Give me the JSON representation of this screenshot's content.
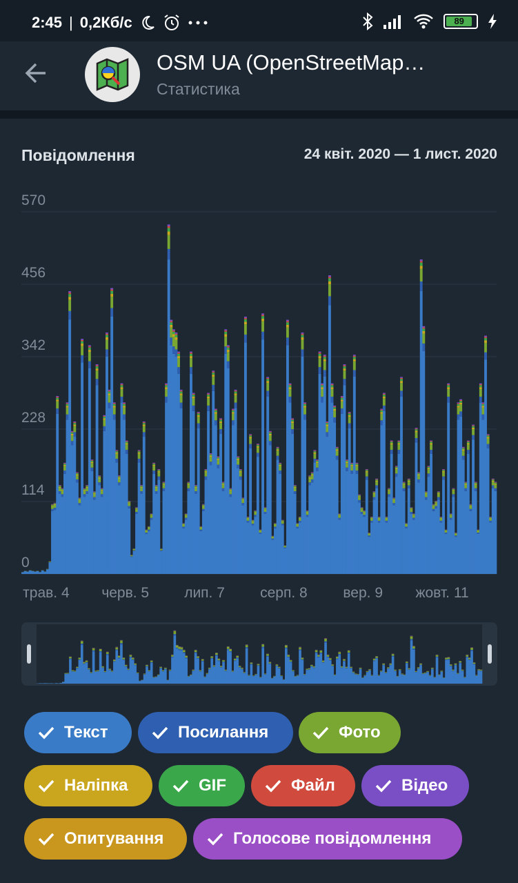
{
  "status_bar": {
    "time": "2:45",
    "separator": "|",
    "speed": "0,2Кб/с",
    "battery": "89",
    "icons": [
      "moon-icon",
      "alarm-icon",
      "more-dots-icon",
      "bluetooth-icon",
      "signal-icon",
      "wifi-icon",
      "battery-icon",
      "charging-bolt-icon"
    ]
  },
  "header": {
    "title": "OSM UA (OpenStreetMap…",
    "subtitle": "Статистика",
    "back_icon": "back-arrow-icon",
    "avatar_icon": "map-search-icon"
  },
  "chart_card": {
    "title": "Повідомлення",
    "range": "24 квіт. 2020 — 1 лист. 2020"
  },
  "chart_data": {
    "type": "bar",
    "stacked": true,
    "title": "Повідомлення",
    "ylim": [
      0,
      570
    ],
    "y_ticks": [
      "570",
      "456",
      "342",
      "228",
      "114",
      "0"
    ],
    "y_tick_values": [
      570,
      456,
      342,
      228,
      114,
      0
    ],
    "x_ticks": [
      "трав. 4",
      "черв. 5",
      "лип. 7",
      "серп. 8",
      "вер. 9",
      "жовт. 11"
    ],
    "x_tick_indexes": [
      10,
      42,
      74,
      106,
      138,
      170
    ],
    "grid": true,
    "colors": {
      "text": "#3a7bc8",
      "links": "#2f5fb0",
      "photo": "#7aa632",
      "sticker": "#c9a61e",
      "gif": "#3aa84a",
      "file": "#d04a3d",
      "video": "#7a4fc6"
    },
    "days": 192,
    "totals": [
      3,
      5,
      4,
      6,
      5,
      4,
      5,
      3,
      6,
      4,
      8,
      20,
      110,
      112,
      280,
      140,
      135,
      175,
      270,
      445,
      225,
      240,
      160,
      120,
      370,
      135,
      140,
      360,
      180,
      130,
      330,
      155,
      135,
      250,
      380,
      290,
      450,
      270,
      195,
      155,
      300,
      270,
      210,
      115,
      30,
      40,
      105,
      195,
      140,
      240,
      70,
      75,
      95,
      175,
      140,
      165,
      40,
      145,
      300,
      550,
      400,
      385,
      380,
      350,
      290,
      80,
      95,
      145,
      350,
      285,
      140,
      255,
      75,
      110,
      165,
      285,
      190,
      320,
      260,
      185,
      245,
      145,
      385,
      360,
      135,
      260,
      290,
      185,
      165,
      120,
      405,
      90,
      220,
      85,
      100,
      205,
      70,
      410,
      105,
      310,
      225,
      60,
      80,
      200,
      175,
      85,
      45,
      400,
      300,
      245,
      140,
      80,
      90,
      380,
      270,
      100,
      155,
      160,
      195,
      180,
      350,
      300,
      345,
      240,
      470,
      300,
      265,
      200,
      95,
      280,
      330,
      180,
      255,
      175,
      345,
      175,
      125,
      105,
      100,
      165,
      65,
      90,
      130,
      150,
      90,
      260,
      285,
      90,
      135,
      210,
      120,
      170,
      210,
      310,
      145,
      80,
      150,
      105,
      95,
      230,
      160,
      495,
      390,
      130,
      170,
      210,
      110,
      115,
      130,
      90,
      165,
      70,
      300,
      95,
      135,
      65,
      270,
      275,
      200,
      145,
      210,
      110,
      235,
      145,
      70,
      300,
      270,
      375,
      220,
      90,
      150,
      145
    ],
    "segment_shares": {
      "text": 0.9,
      "links": 0.03,
      "photo": 0.04,
      "sticker": 0.01,
      "gif": 0.01,
      "file": 0.005,
      "video": 0.005
    }
  },
  "filters": [
    {
      "label": "Текст",
      "color": "#3a7bc8",
      "checked": true
    },
    {
      "label": "Посилання",
      "color": "#2f5fb0",
      "checked": true
    },
    {
      "label": "Фото",
      "color": "#7aa632",
      "checked": true
    },
    {
      "label": "Наліпка",
      "color": "#c9a61e",
      "checked": true
    },
    {
      "label": "GIF",
      "color": "#3aa84a",
      "checked": true
    },
    {
      "label": "Файл",
      "color": "#d04a3d",
      "checked": true
    },
    {
      "label": "Відео",
      "color": "#7a4fc6",
      "checked": true
    },
    {
      "label": "Опитування",
      "color": "#c9961e",
      "checked": true
    },
    {
      "label": "Голосове повідомлення",
      "color": "#9b4fc6",
      "checked": true
    }
  ]
}
